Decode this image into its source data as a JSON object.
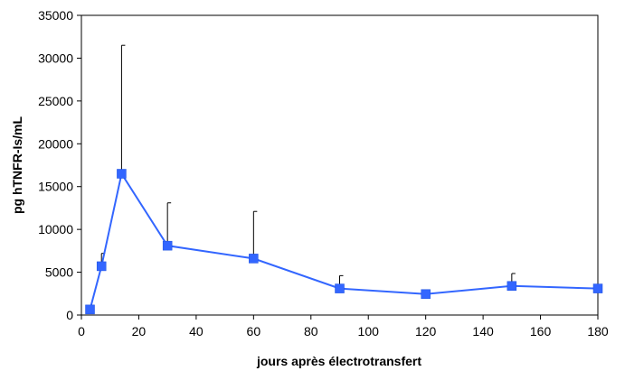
{
  "chart_data": {
    "type": "line",
    "title": "",
    "xlabel": "jours après électrotransfert",
    "ylabel": "pg hTNFR-Is/mL",
    "xlim": [
      0,
      180
    ],
    "ylim": [
      0,
      35000
    ],
    "x_ticks": [
      0,
      20,
      40,
      60,
      80,
      100,
      120,
      140,
      160,
      180
    ],
    "y_ticks": [
      0,
      5000,
      10000,
      15000,
      20000,
      25000,
      30000,
      35000
    ],
    "grid": false,
    "legend": "none",
    "series": [
      {
        "color": "#3366ff",
        "marker": "square",
        "points": [
          {
            "x": 3,
            "y": 650,
            "err": 0
          },
          {
            "x": 7,
            "y": 5700,
            "err": 1500
          },
          {
            "x": 14,
            "y": 16500,
            "err": 15000
          },
          {
            "x": 30,
            "y": 8100,
            "err": 5000
          },
          {
            "x": 60,
            "y": 6600,
            "err": 5500
          },
          {
            "x": 90,
            "y": 3100,
            "err": 1500
          },
          {
            "x": 120,
            "y": 2450,
            "err": 0
          },
          {
            "x": 150,
            "y": 3400,
            "err": 1450
          },
          {
            "x": 180,
            "y": 3100,
            "err": 0
          }
        ]
      }
    ]
  }
}
